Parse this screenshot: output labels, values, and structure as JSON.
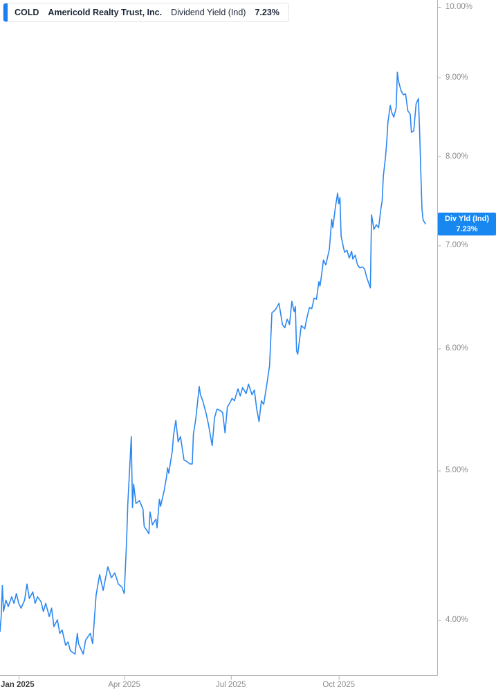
{
  "header": {
    "ticker": "COLD",
    "company": "Americold Realty Trust, Inc.",
    "metric": "Dividend Yield (Ind)",
    "value": "7.23%"
  },
  "badge": {
    "line1": "Div Yld (Ind)",
    "line2": "7.23%"
  },
  "colors": {
    "accent_blue": "#1b7ef2",
    "badge_blue": "#1887f0",
    "line_blue": "#2b87f0",
    "axis_line": "#b3b3b3",
    "tick_text": "#8c8c8c",
    "tick_text_strong": "#3d3d3d"
  },
  "chart_data": {
    "type": "line",
    "title": "COLD Americold Realty Trust, Inc. Dividend Yield (Ind) 7.23%",
    "xlabel": "",
    "ylabel": "Dividend Yield (Ind)",
    "y_unit": "%",
    "y_scale": "log",
    "grid": false,
    "legend_position": "none",
    "x_domain": [
      "2024-12-16",
      "2025-12-24"
    ],
    "y_anchors": {
      "top_value": 10.0,
      "bottom_value": 4.0
    },
    "y_ticks": [
      {
        "value": 10.0,
        "label": "10.00%"
      },
      {
        "value": 9.0,
        "label": "9.00%"
      },
      {
        "value": 8.0,
        "label": "8.00%"
      },
      {
        "value": 7.0,
        "label": "7.00%"
      },
      {
        "value": 6.0,
        "label": "6.00%"
      },
      {
        "value": 5.0,
        "label": "5.00%"
      },
      {
        "value": 4.0,
        "label": "4.00%"
      }
    ],
    "x_ticks": [
      {
        "date": "2025-01-01",
        "label": "Jan 2025",
        "strong": true
      },
      {
        "date": "2025-04-01",
        "label": "Apr 2025",
        "strong": false
      },
      {
        "date": "2025-07-01",
        "label": "Jul 2025",
        "strong": false
      },
      {
        "date": "2025-10-01",
        "label": "Oct 2025",
        "strong": false
      }
    ],
    "series": [
      {
        "name": "Div Yld (Ind)",
        "last_value": 7.23,
        "points": [
          [
            "2024-12-16",
            3.93
          ],
          [
            "2024-12-17",
            4.02
          ],
          [
            "2024-12-18",
            4.21
          ],
          [
            "2024-12-19",
            4.05
          ],
          [
            "2024-12-21",
            4.12
          ],
          [
            "2024-12-23",
            4.08
          ],
          [
            "2024-12-26",
            4.14
          ],
          [
            "2024-12-28",
            4.1
          ],
          [
            "2024-12-30",
            4.16
          ],
          [
            "2025-01-01",
            4.1
          ],
          [
            "2025-01-03",
            4.07
          ],
          [
            "2025-01-06",
            4.12
          ],
          [
            "2025-01-08",
            4.22
          ],
          [
            "2025-01-10",
            4.13
          ],
          [
            "2025-01-13",
            4.17
          ],
          [
            "2025-01-15",
            4.1
          ],
          [
            "2025-01-17",
            4.14
          ],
          [
            "2025-01-20",
            4.11
          ],
          [
            "2025-01-22",
            4.05
          ],
          [
            "2025-01-24",
            4.1
          ],
          [
            "2025-01-27",
            4.02
          ],
          [
            "2025-01-29",
            4.07
          ],
          [
            "2025-01-31",
            3.96
          ],
          [
            "2025-02-03",
            4.0
          ],
          [
            "2025-02-05",
            3.92
          ],
          [
            "2025-02-07",
            3.94
          ],
          [
            "2025-02-10",
            3.85
          ],
          [
            "2025-02-12",
            3.87
          ],
          [
            "2025-02-14",
            3.82
          ],
          [
            "2025-02-18",
            3.8
          ],
          [
            "2025-02-20",
            3.92
          ],
          [
            "2025-02-21",
            3.86
          ],
          [
            "2025-02-25",
            3.8
          ],
          [
            "2025-02-27",
            3.88
          ],
          [
            "2025-03-03",
            3.92
          ],
          [
            "2025-03-05",
            3.86
          ],
          [
            "2025-03-08",
            4.15
          ],
          [
            "2025-03-11",
            4.28
          ],
          [
            "2025-03-14",
            4.18
          ],
          [
            "2025-03-18",
            4.33
          ],
          [
            "2025-03-21",
            4.26
          ],
          [
            "2025-03-24",
            4.29
          ],
          [
            "2025-03-27",
            4.22
          ],
          [
            "2025-03-30",
            4.2
          ],
          [
            "2025-04-01",
            4.16
          ],
          [
            "2025-04-03",
            4.5
          ],
          [
            "2025-04-04",
            4.75
          ],
          [
            "2025-04-07",
            5.26
          ],
          [
            "2025-04-08",
            4.73
          ],
          [
            "2025-04-09",
            4.9
          ],
          [
            "2025-04-11",
            4.76
          ],
          [
            "2025-04-14",
            4.78
          ],
          [
            "2025-04-17",
            4.72
          ],
          [
            "2025-04-18",
            4.6
          ],
          [
            "2025-04-22",
            4.55
          ],
          [
            "2025-04-23",
            4.7
          ],
          [
            "2025-04-25",
            4.61
          ],
          [
            "2025-04-28",
            4.65
          ],
          [
            "2025-04-29",
            4.59
          ],
          [
            "2025-05-01",
            4.79
          ],
          [
            "2025-05-02",
            4.74
          ],
          [
            "2025-05-05",
            4.85
          ],
          [
            "2025-05-07",
            4.95
          ],
          [
            "2025-05-08",
            5.02
          ],
          [
            "2025-05-09",
            4.98
          ],
          [
            "2025-05-12",
            5.15
          ],
          [
            "2025-05-13",
            5.27
          ],
          [
            "2025-05-15",
            5.39
          ],
          [
            "2025-05-17",
            5.22
          ],
          [
            "2025-05-19",
            5.26
          ],
          [
            "2025-05-20",
            5.2
          ],
          [
            "2025-05-22",
            5.08
          ],
          [
            "2025-05-24",
            5.07
          ],
          [
            "2025-05-27",
            5.05
          ],
          [
            "2025-05-29",
            5.05
          ],
          [
            "2025-05-30",
            5.28
          ],
          [
            "2025-06-01",
            5.4
          ],
          [
            "2025-06-02",
            5.49
          ],
          [
            "2025-06-04",
            5.67
          ],
          [
            "2025-06-05",
            5.6
          ],
          [
            "2025-06-07",
            5.55
          ],
          [
            "2025-06-10",
            5.44
          ],
          [
            "2025-06-12",
            5.35
          ],
          [
            "2025-06-15",
            5.19
          ],
          [
            "2025-06-17",
            5.41
          ],
          [
            "2025-06-19",
            5.48
          ],
          [
            "2025-06-22",
            5.47
          ],
          [
            "2025-06-24",
            5.45
          ],
          [
            "2025-06-26",
            5.29
          ],
          [
            "2025-06-28",
            5.5
          ],
          [
            "2025-06-30",
            5.53
          ],
          [
            "2025-07-02",
            5.57
          ],
          [
            "2025-07-04",
            5.55
          ],
          [
            "2025-07-07",
            5.65
          ],
          [
            "2025-07-09",
            5.59
          ],
          [
            "2025-07-11",
            5.66
          ],
          [
            "2025-07-14",
            5.61
          ],
          [
            "2025-07-16",
            5.69
          ],
          [
            "2025-07-19",
            5.6
          ],
          [
            "2025-07-21",
            5.64
          ],
          [
            "2025-07-23",
            5.48
          ],
          [
            "2025-07-25",
            5.38
          ],
          [
            "2025-07-27",
            5.55
          ],
          [
            "2025-07-29",
            5.52
          ],
          [
            "2025-08-01",
            5.71
          ],
          [
            "2025-08-03",
            5.85
          ],
          [
            "2025-08-05",
            6.33
          ],
          [
            "2025-08-08",
            6.36
          ],
          [
            "2025-08-11",
            6.42
          ],
          [
            "2025-08-14",
            6.22
          ],
          [
            "2025-08-16",
            6.19
          ],
          [
            "2025-08-18",
            6.27
          ],
          [
            "2025-08-20",
            6.22
          ],
          [
            "2025-08-22",
            6.44
          ],
          [
            "2025-08-24",
            6.34
          ],
          [
            "2025-08-25",
            6.39
          ],
          [
            "2025-08-26",
            5.98
          ],
          [
            "2025-08-27",
            5.95
          ],
          [
            "2025-08-30",
            6.21
          ],
          [
            "2025-09-02",
            6.18
          ],
          [
            "2025-09-04",
            6.29
          ],
          [
            "2025-09-06",
            6.38
          ],
          [
            "2025-09-08",
            6.37
          ],
          [
            "2025-09-10",
            6.47
          ],
          [
            "2025-09-12",
            6.46
          ],
          [
            "2025-09-14",
            6.63
          ],
          [
            "2025-09-15",
            6.59
          ],
          [
            "2025-09-16",
            6.67
          ],
          [
            "2025-09-18",
            6.85
          ],
          [
            "2025-09-20",
            6.8
          ],
          [
            "2025-09-23",
            6.96
          ],
          [
            "2025-09-25",
            7.28
          ],
          [
            "2025-09-26",
            7.19
          ],
          [
            "2025-09-28",
            7.4
          ],
          [
            "2025-09-30",
            7.57
          ],
          [
            "2025-10-01",
            7.45
          ],
          [
            "2025-10-02",
            7.52
          ],
          [
            "2025-10-03",
            7.1
          ],
          [
            "2025-10-05",
            6.98
          ],
          [
            "2025-10-06",
            6.93
          ],
          [
            "2025-10-08",
            6.95
          ],
          [
            "2025-10-10",
            6.87
          ],
          [
            "2025-10-12",
            6.94
          ],
          [
            "2025-10-13",
            6.86
          ],
          [
            "2025-10-15",
            6.9
          ],
          [
            "2025-10-17",
            6.8
          ],
          [
            "2025-10-19",
            6.77
          ],
          [
            "2025-10-21",
            6.78
          ],
          [
            "2025-10-23",
            6.76
          ],
          [
            "2025-10-25",
            6.67
          ],
          [
            "2025-10-28",
            6.57
          ],
          [
            "2025-10-29",
            7.33
          ],
          [
            "2025-10-31",
            7.17
          ],
          [
            "2025-11-02",
            7.22
          ],
          [
            "2025-11-04",
            7.19
          ],
          [
            "2025-11-06",
            7.4
          ],
          [
            "2025-11-07",
            7.48
          ],
          [
            "2025-11-08",
            7.76
          ],
          [
            "2025-11-10",
            8.0
          ],
          [
            "2025-11-11",
            8.18
          ],
          [
            "2025-11-12",
            8.42
          ],
          [
            "2025-11-14",
            8.63
          ],
          [
            "2025-11-15",
            8.55
          ],
          [
            "2025-11-17",
            8.48
          ],
          [
            "2025-11-19",
            8.6
          ],
          [
            "2025-11-20",
            9.07
          ],
          [
            "2025-11-21",
            8.95
          ],
          [
            "2025-11-23",
            8.83
          ],
          [
            "2025-11-25",
            8.77
          ],
          [
            "2025-11-27",
            8.78
          ],
          [
            "2025-11-29",
            8.56
          ],
          [
            "2025-12-01",
            8.52
          ],
          [
            "2025-12-02",
            8.29
          ],
          [
            "2025-12-04",
            8.31
          ],
          [
            "2025-12-06",
            8.65
          ],
          [
            "2025-12-08",
            8.72
          ],
          [
            "2025-12-09",
            8.3
          ],
          [
            "2025-12-10",
            7.82
          ],
          [
            "2025-12-11",
            7.39
          ],
          [
            "2025-12-12",
            7.27
          ],
          [
            "2025-12-14",
            7.23
          ]
        ]
      }
    ]
  }
}
